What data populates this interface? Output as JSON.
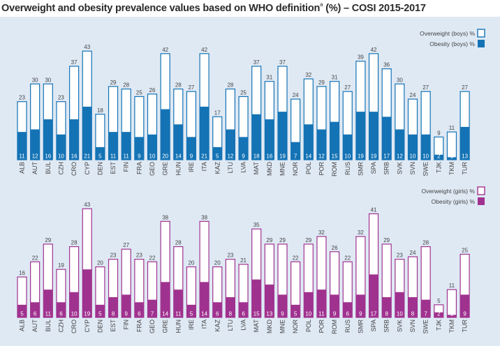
{
  "title": {
    "main": "Overweight and obesity prevalence values based on WHO definition",
    "superscript": "a",
    "suffix": " (%)  – COSI 2015-2017"
  },
  "colors": {
    "boys": "#1473b5",
    "girls": "#a0328f",
    "background": "#dfe9f4",
    "text": "#444444"
  },
  "chart_data": [
    {
      "type": "bar",
      "categories": [
        "ALB",
        "AUT",
        "BUL",
        "CZH",
        "CRO",
        "CYP",
        "DEN",
        "EST",
        "FIN",
        "FRA",
        "GEO",
        "GRE",
        "HUN",
        "IRE",
        "ITA",
        "KAZ",
        "LTU",
        "LVA",
        "MAT",
        "MKD",
        "MNE",
        "NOR",
        "POL",
        "POR",
        "ROM",
        "RUS",
        "SMR",
        "SPA",
        "SRB",
        "SVK",
        "SVN",
        "SWE",
        "TJK",
        "TKM",
        "TUR"
      ],
      "series": [
        {
          "name": "Overweight (boys) %",
          "values": [
            23,
            30,
            30,
            23,
            37,
            43,
            18,
            29,
            28,
            25,
            26,
            42,
            28,
            27,
            42,
            17,
            28,
            25,
            37,
            31,
            37,
            24,
            32,
            29,
            31,
            27,
            39,
            42,
            36,
            30,
            24,
            27,
            9,
            11,
            27
          ]
        },
        {
          "name": "Obesity (boys) %",
          "values": [
            11,
            12,
            16,
            10,
            16,
            21,
            5,
            11,
            11,
            9,
            10,
            20,
            14,
            9,
            21,
            5,
            12,
            9,
            18,
            16,
            19,
            7,
            14,
            12,
            15,
            10,
            19,
            19,
            17,
            12,
            10,
            10,
            2,
            1,
            13
          ]
        }
      ],
      "ylim": [
        0,
        45
      ]
    },
    {
      "type": "bar",
      "categories": [
        "ALB",
        "AUT",
        "BUL",
        "CZH",
        "CRO",
        "CYP",
        "DEN",
        "EST",
        "FIN",
        "FRA",
        "GEO",
        "GRE",
        "HUN",
        "IRE",
        "ITA",
        "KAZ",
        "LTU",
        "LVA",
        "MAT",
        "MKD",
        "MNE",
        "NOR",
        "POL",
        "POR",
        "ROM",
        "RUS",
        "SMR",
        "SPA",
        "SRB",
        "SVK",
        "SVN",
        "SWE",
        "TJK",
        "TKM",
        "TUR"
      ],
      "series": [
        {
          "name": "Overweight (girls) %",
          "values": [
            16,
            22,
            29,
            19,
            28,
            43,
            20,
            23,
            27,
            23,
            22,
            38,
            28,
            20,
            38,
            20,
            23,
            21,
            35,
            29,
            29,
            22,
            29,
            32,
            26,
            22,
            32,
            41,
            29,
            23,
            24,
            28,
            5,
            11,
            25
          ]
        },
        {
          "name": "Obesity (girls) %",
          "values": [
            5,
            6,
            11,
            6,
            10,
            19,
            5,
            8,
            9,
            6,
            7,
            14,
            11,
            5,
            14,
            6,
            8,
            6,
            15,
            13,
            9,
            5,
            10,
            11,
            9,
            6,
            9,
            17,
            8,
            10,
            8,
            7,
            2,
            1,
            9
          ]
        }
      ],
      "ylim": [
        0,
        45
      ]
    }
  ]
}
